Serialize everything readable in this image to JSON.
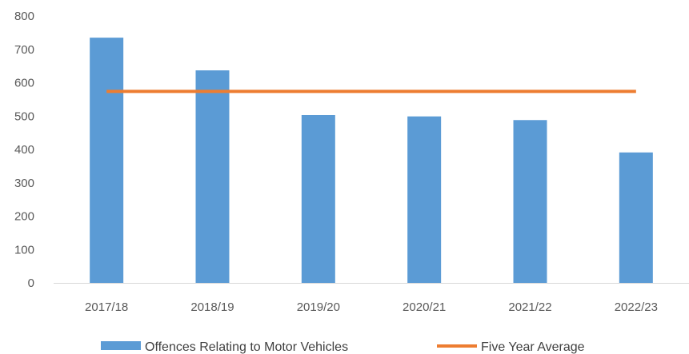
{
  "chart_data": {
    "type": "bar",
    "categories": [
      "2017/18",
      "2018/19",
      "2019/20",
      "2020/21",
      "2021/22",
      "2022/23"
    ],
    "series": [
      {
        "name": "Offences Relating to Motor Vehicles",
        "type": "bar",
        "color": "#5B9BD5",
        "values": [
          735,
          637,
          503,
          499,
          488,
          391
        ]
      },
      {
        "name": "Five Year Average",
        "type": "line",
        "color": "#ED7D31",
        "values": [
          574,
          574,
          574,
          574,
          574,
          574
        ]
      }
    ],
    "yticks": [
      "0",
      "100",
      "200",
      "300",
      "400",
      "500",
      "600",
      "700",
      "800"
    ],
    "ylim": [
      0,
      800
    ],
    "grid": false,
    "legend": "bottom"
  }
}
